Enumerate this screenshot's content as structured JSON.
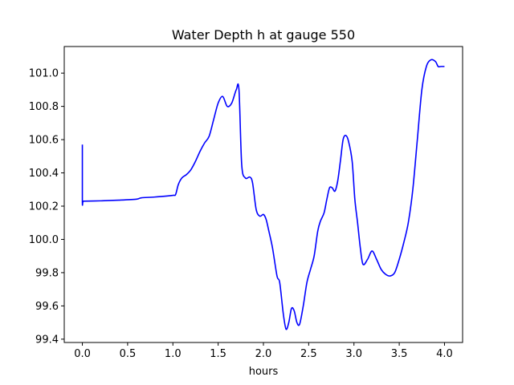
{
  "chart_data": {
    "type": "line",
    "title": "Water Depth h at gauge 550",
    "xlabel": "hours",
    "ylabel": "",
    "xlim": [
      -0.2,
      4.2
    ],
    "ylim": [
      99.38,
      101.16
    ],
    "xticks": [
      0.0,
      0.5,
      1.0,
      1.5,
      2.0,
      2.5,
      3.0,
      3.5,
      4.0
    ],
    "xtick_labels": [
      "0.0",
      "0.5",
      "1.0",
      "1.5",
      "2.0",
      "2.5",
      "3.0",
      "3.5",
      "4.0"
    ],
    "yticks": [
      99.4,
      99.6,
      99.8,
      100.0,
      100.2,
      100.4,
      100.6,
      100.8,
      101.0
    ],
    "ytick_labels": [
      "99.4",
      "99.6",
      "99.8",
      "100.0",
      "100.2",
      "100.4",
      "100.6",
      "100.8",
      "101.0"
    ],
    "grid": false,
    "series": [
      {
        "color": "#0000ff",
        "x": [
          0.0,
          0.0,
          0.01,
          0.2,
          0.4,
          0.6,
          0.65,
          0.8,
          1.0,
          1.03,
          1.06,
          1.1,
          1.15,
          1.2,
          1.25,
          1.3,
          1.35,
          1.4,
          1.45,
          1.5,
          1.55,
          1.6,
          1.65,
          1.7,
          1.73,
          1.76,
          1.8,
          1.85,
          1.88,
          1.92,
          1.96,
          2.0,
          2.03,
          2.06,
          2.1,
          2.15,
          2.18,
          2.22,
          2.25,
          2.28,
          2.31,
          2.34,
          2.37,
          2.4,
          2.44,
          2.48,
          2.52,
          2.56,
          2.6,
          2.63,
          2.67,
          2.7,
          2.73,
          2.76,
          2.79,
          2.82,
          2.85,
          2.88,
          2.91,
          2.94,
          2.98,
          3.01,
          3.04,
          3.07,
          3.1,
          3.15,
          3.2,
          3.25,
          3.3,
          3.35,
          3.4,
          3.45,
          3.5,
          3.55,
          3.6,
          3.65,
          3.7,
          3.75,
          3.8,
          3.85,
          3.9,
          3.93,
          3.96,
          4.0
        ],
        "y": [
          100.57,
          100.23,
          100.23,
          100.232,
          100.236,
          100.242,
          100.25,
          100.255,
          100.265,
          100.27,
          100.33,
          100.37,
          100.39,
          100.42,
          100.47,
          100.53,
          100.58,
          100.62,
          100.72,
          100.82,
          100.86,
          100.8,
          100.82,
          100.9,
          100.9,
          100.45,
          100.37,
          100.375,
          100.34,
          100.18,
          100.14,
          100.15,
          100.12,
          100.05,
          99.95,
          99.78,
          99.74,
          99.55,
          99.46,
          99.5,
          99.585,
          99.57,
          99.5,
          99.49,
          99.6,
          99.74,
          99.82,
          99.9,
          100.05,
          100.11,
          100.16,
          100.24,
          100.31,
          100.31,
          100.29,
          100.35,
          100.47,
          100.6,
          100.625,
          100.59,
          100.47,
          100.24,
          100.1,
          99.95,
          99.85,
          99.88,
          99.93,
          99.88,
          99.82,
          99.79,
          99.78,
          99.8,
          99.88,
          99.98,
          100.1,
          100.3,
          100.6,
          100.9,
          101.04,
          101.08,
          101.07,
          101.04,
          101.04,
          101.04
        ]
      }
    ]
  }
}
